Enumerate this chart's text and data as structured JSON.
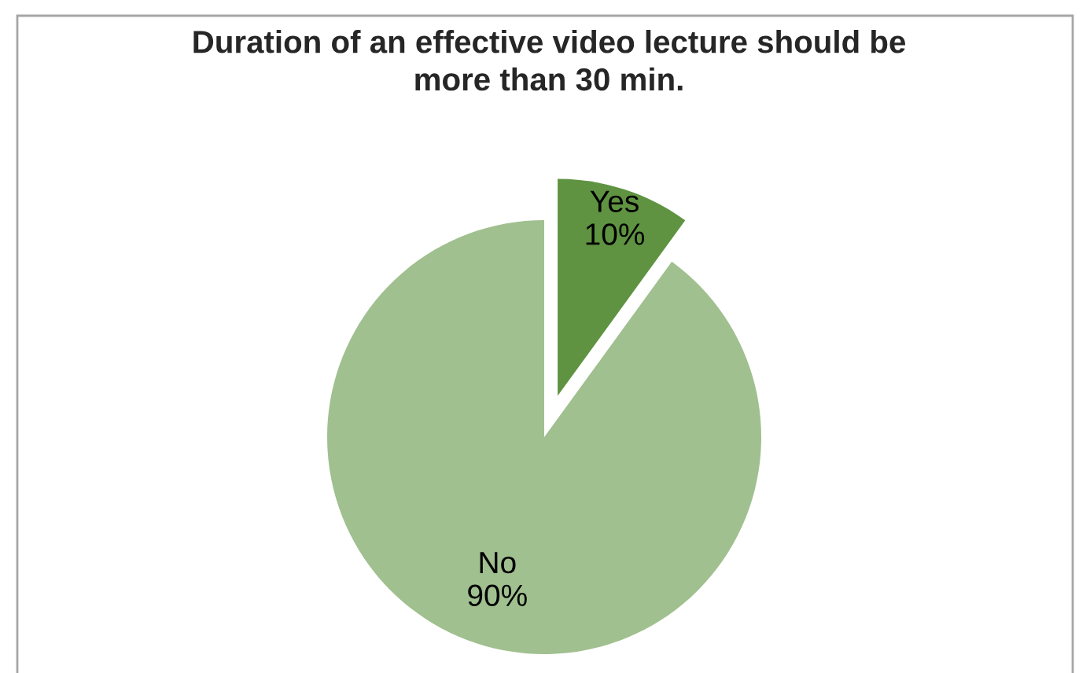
{
  "chart_data": {
    "type": "pie",
    "title": "Duration of an effective video lecture should be\nmore than 30 min.",
    "categories": [
      "Yes",
      "No"
    ],
    "values": [
      10,
      90
    ],
    "colors": [
      "#5f9341",
      "#a0c08f"
    ],
    "value_labels": [
      "10%",
      "90%"
    ]
  }
}
